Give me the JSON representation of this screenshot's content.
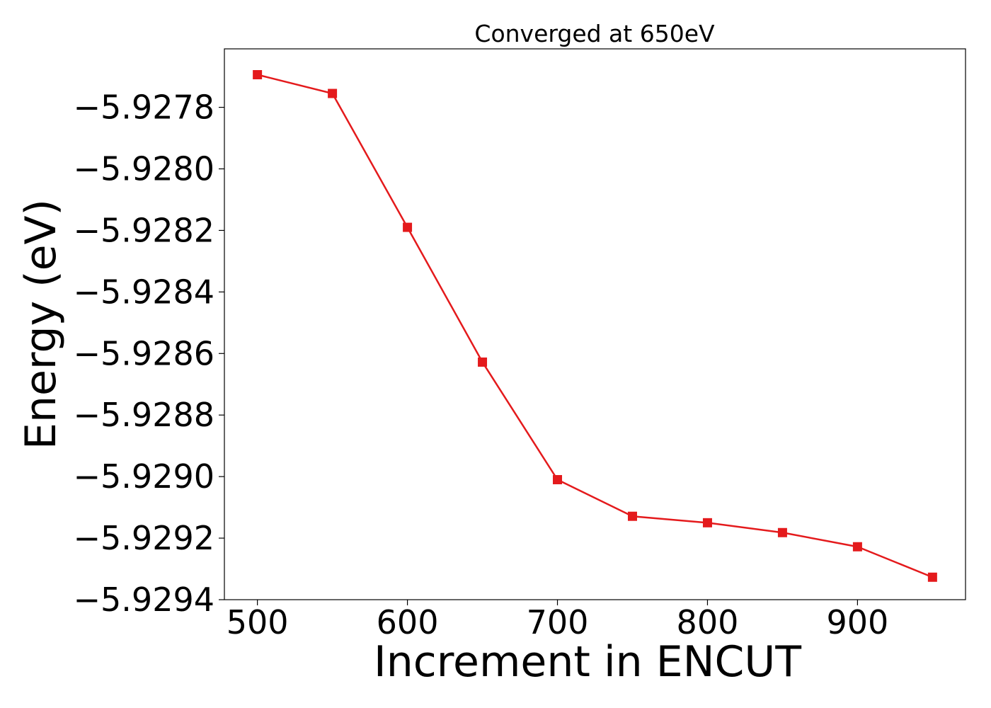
{
  "chart_data": {
    "type": "line",
    "title": "Converged at 650eV",
    "xlabel": "Increment in ENCUT",
    "ylabel": "Energy (eV)",
    "x": [
      500,
      550,
      600,
      650,
      700,
      750,
      800,
      850,
      900,
      950
    ],
    "series": [
      {
        "values": [
          -5.927694,
          -5.927755,
          -5.92819,
          -5.928628,
          -5.92901,
          -5.929129,
          -5.92915,
          -5.929182,
          -5.929228,
          -5.929327
        ],
        "color": "#e41a1c",
        "marker": "square"
      }
    ],
    "xlim": [
      478,
      972
    ],
    "ylim": [
      -5.9294,
      -5.92761
    ],
    "xticks": [
      500,
      600,
      700,
      800,
      900
    ],
    "xtick_labels": [
      "500",
      "600",
      "700",
      "800",
      "900"
    ],
    "yticks": [
      -5.9278,
      -5.928,
      -5.9282,
      -5.9284,
      -5.9286,
      -5.9288,
      -5.929,
      -5.9292,
      -5.9294
    ],
    "ytick_labels": [
      "−5.9278",
      "−5.9280",
      "−5.9282",
      "−5.9284",
      "−5.9286",
      "−5.9288",
      "−5.9290",
      "−5.9292",
      "−5.9294"
    ],
    "grid": false,
    "legend": "none"
  }
}
